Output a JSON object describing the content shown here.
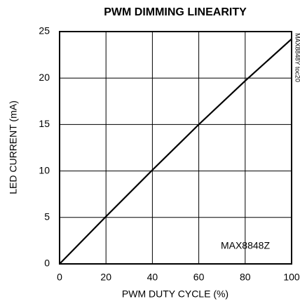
{
  "chart_data": {
    "type": "line",
    "title": "PWM DIMMING LINEARITY",
    "x_label": "PWM DUTY CYCLE (%)",
    "y_label": "LED CURRENT (mA)",
    "annotations": [
      "MAX8848Z",
      "MAX8848Y toc20"
    ],
    "x": [
      0,
      20,
      40,
      60,
      80,
      100
    ],
    "series": [
      {
        "name": "MAX8848Z",
        "color": "#000000",
        "values": [
          0,
          5.1,
          10.1,
          15,
          19.7,
          24.2
        ]
      }
    ],
    "xlim": [
      0,
      100
    ],
    "xticks": [
      0,
      20,
      40,
      60,
      80,
      100
    ],
    "ylim": [
      0,
      25
    ],
    "yticks": [
      0,
      5,
      10,
      15,
      20,
      25
    ],
    "grid": true
  }
}
